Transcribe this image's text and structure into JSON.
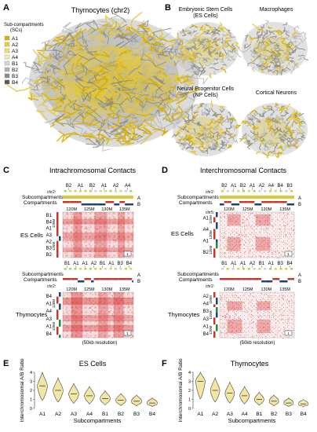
{
  "panels": {
    "A": {
      "letter": "A",
      "title": "Thymocytes (chr2)",
      "legend_title_1": "Sub-compartments",
      "legend_title_2": "(SCs)",
      "legend": [
        {
          "label": "A1",
          "color": "#d9b400"
        },
        {
          "label": "A2",
          "color": "#e8cf3c"
        },
        {
          "label": "A3",
          "color": "#efdf7c"
        },
        {
          "label": "A4",
          "color": "#f4ebb5"
        },
        {
          "label": "B1",
          "color": "#d8d8d8"
        },
        {
          "label": "B2",
          "color": "#b3b3b3"
        },
        {
          "label": "B3",
          "color": "#8c8c8c"
        },
        {
          "label": "B4",
          "color": "#5a5a5a"
        }
      ]
    },
    "B": {
      "letter": "B",
      "labels": [
        "Embryonic Stem Cells",
        "(ES Cells)",
        "Macrophages",
        "Neural Progenitor Cells",
        "(NP Cells)",
        "Cortical Neurons"
      ]
    },
    "C": {
      "letter": "C",
      "title": "Intrachromosomal Contacts",
      "chr_label": "chr2:",
      "sub_label": "Subcompartments",
      "comp_label": "Compartments",
      "sc_top_es": [
        "B2",
        "A1",
        "B2",
        "A1",
        "A2",
        "A4"
      ],
      "sc_top_thy": [
        "B1",
        "A1",
        "A1",
        "A2",
        "B1",
        "A1",
        "B3",
        "B4"
      ],
      "pos_ticks": [
        "120M",
        "125M",
        "130M",
        "135M"
      ],
      "row_labels_es": [
        "B1",
        "B4",
        "A1",
        "A3",
        "A2",
        "B3",
        "B2"
      ],
      "row_labels_thy": [
        "B4",
        "A1",
        "A4",
        "A3",
        "A1",
        "B4"
      ],
      "side_ticks": [
        "120M",
        "125M"
      ],
      "cell_es": "ES Cells",
      "cell_thy": "Thymocytes",
      "resolution": "(50kb resolution)",
      "ab_a": "A",
      "ab_b": "B",
      "badge_1": "1",
      "badge_2": "1"
    },
    "D": {
      "letter": "D",
      "title": "Interchromosomal Contacts",
      "chr_label": "chr2:",
      "chr5_label": "chr5:",
      "sub_label": "Subcompartments",
      "comp_label": "Compartments",
      "sc_top_es": [
        "B2",
        "A1",
        "B2",
        "A1",
        "A2",
        "A4",
        "B4",
        "B3"
      ],
      "sc_top_thy": [
        "B1",
        "A1",
        "A1",
        "A2",
        "B1",
        "A1",
        "B3",
        "B4"
      ],
      "pos_ticks": [
        "120M",
        "125M",
        "130M",
        "135M"
      ],
      "row_labels_es": [
        "A1",
        "A4",
        "A1",
        "B2"
      ],
      "row_labels_thy": [
        "A2",
        "A4",
        "B3",
        "A3",
        "A1",
        "B4"
      ],
      "side_ticks_es": [
        "115M",
        "120M",
        "125M"
      ],
      "side_ticks_thy": [
        "110M",
        "115M",
        "120M"
      ],
      "cell_es": "ES Cells",
      "cell_thy": "Thymocytes",
      "resolution": "(50kb resolution)",
      "ab_a": "A",
      "ab_b": "B",
      "badge_1": "1",
      "badge_2": "1"
    },
    "E": {
      "letter": "E",
      "title": "ES Cells"
    },
    "F": {
      "letter": "F",
      "title": "Thymocytes"
    }
  },
  "chart_data": [
    {
      "type": "violin",
      "title": "ES Cells",
      "xlabel": "Subcompartments",
      "ylabel": "Interchromosomal A/B Ratio",
      "categories": [
        "A1",
        "A2",
        "A3",
        "A4",
        "B1",
        "B2",
        "B3",
        "B4"
      ],
      "median": [
        2.5,
        2.0,
        1.6,
        1.4,
        1.1,
        0.9,
        0.8,
        0.6
      ],
      "ylim": [
        0,
        4
      ],
      "yticks": [
        "0",
        "1",
        "2",
        "3",
        "4"
      ]
    },
    {
      "type": "violin",
      "title": "Thymocytes",
      "xlabel": "Subcompartments",
      "ylabel": "Interchromosomal A/B Ratio",
      "categories": [
        "A1",
        "A2",
        "A3",
        "A4",
        "B1",
        "B2",
        "B3",
        "B4"
      ],
      "median": [
        3.0,
        2.0,
        1.7,
        1.4,
        1.0,
        0.8,
        0.6,
        0.5
      ],
      "ylim": [
        0,
        4
      ],
      "yticks": [
        "0",
        "1",
        "2",
        "3",
        "4"
      ]
    }
  ]
}
